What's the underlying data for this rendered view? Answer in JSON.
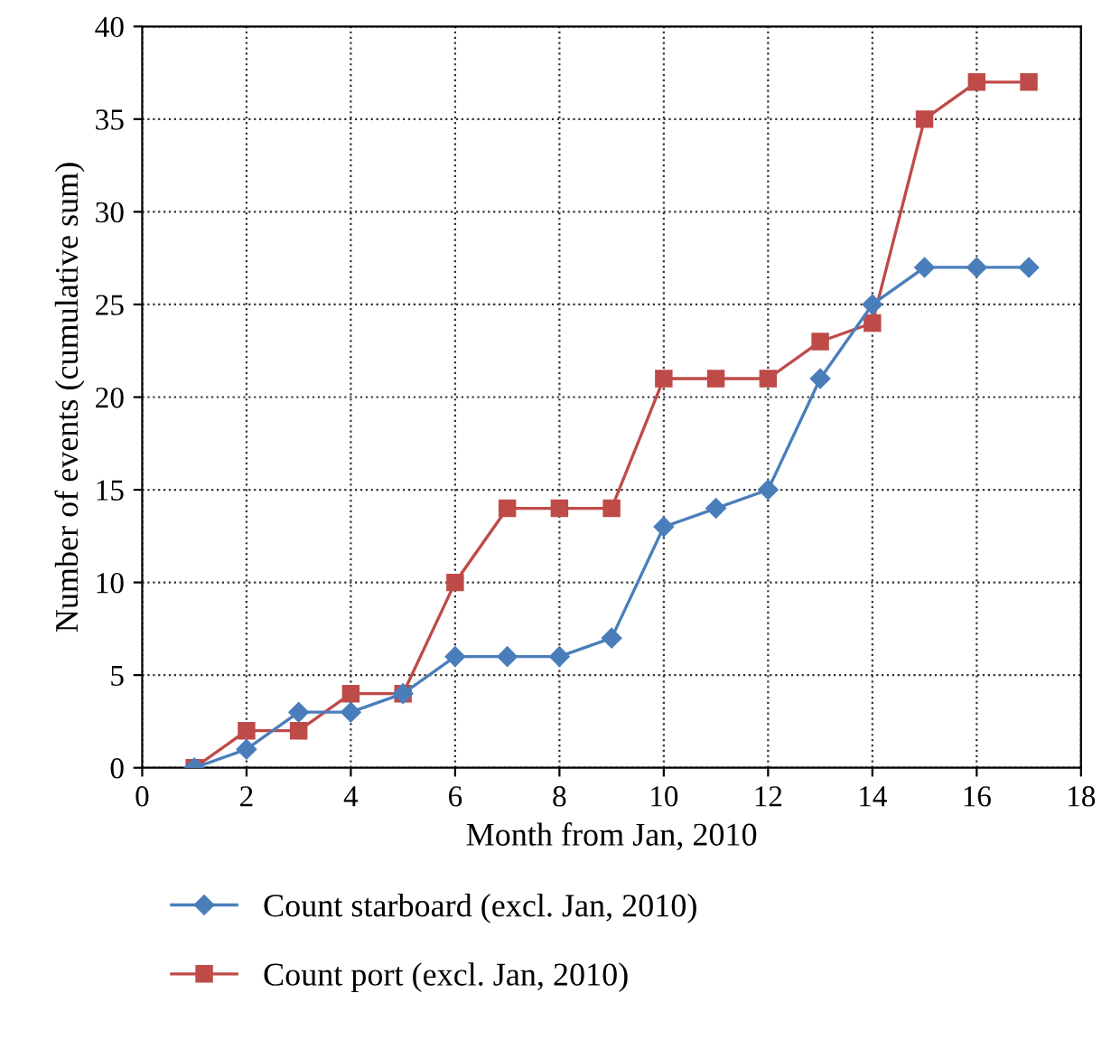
{
  "chart_data": {
    "type": "line",
    "xlabel": "Month from Jan, 2010",
    "ylabel": "Number of events (cumulative sum)",
    "x": [
      1,
      2,
      3,
      4,
      5,
      6,
      7,
      8,
      9,
      10,
      11,
      12,
      13,
      14,
      15,
      16,
      17
    ],
    "series": [
      {
        "name": "Count starboard (excl. Jan, 2010)",
        "color": "#4a7ebb",
        "marker": "diamond",
        "values": [
          0,
          1,
          3,
          3,
          4,
          6,
          6,
          6,
          7,
          13,
          14,
          15,
          21,
          25,
          27,
          27,
          27
        ]
      },
      {
        "name": "Count port (excl. Jan, 2010)",
        "color": "#be4b48",
        "marker": "square",
        "values": [
          0,
          2,
          2,
          4,
          4,
          10,
          14,
          14,
          14,
          21,
          21,
          21,
          23,
          24,
          35,
          37,
          37
        ]
      }
    ],
    "xlim": [
      0,
      18
    ],
    "xticks": [
      0,
      2,
      4,
      6,
      8,
      10,
      12,
      14,
      16,
      18
    ],
    "ylim": [
      0,
      40
    ],
    "yticks": [
      0,
      5,
      10,
      15,
      20,
      25,
      30,
      35,
      40
    ],
    "grid": true,
    "legend": "bottom",
    "line_style": "solid"
  }
}
